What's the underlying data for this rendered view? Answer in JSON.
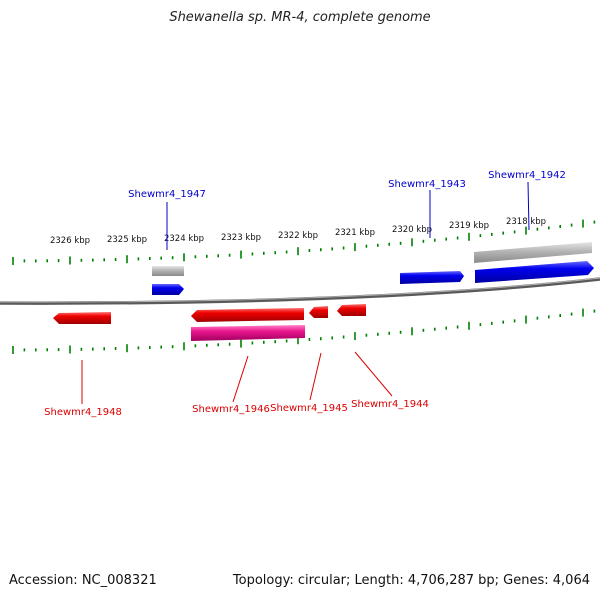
{
  "title": "Shewanella sp. MR-4, complete genome",
  "footer": {
    "accession": "Accession: NC_008321",
    "summary": "Topology: circular; Length: 4,706,287 bp; Genes: 4,064"
  },
  "scale": {
    "unit": "kbp",
    "ticks": [
      "2326 kbp",
      "2325 kbp",
      "2324 kbp",
      "2323 kbp",
      "2322 kbp",
      "2321 kbp",
      "2320 kbp",
      "2319 kbp",
      "2318 kbp"
    ]
  },
  "genes": {
    "plus": [
      {
        "id": "g1947",
        "label": "Shewmr4_1947",
        "color": "#0000ee"
      },
      {
        "id": "g1943",
        "label": "Shewmr4_1943",
        "color": "#0000ee"
      },
      {
        "id": "g1942",
        "label": "Shewmr4_1942",
        "color": "#0000ee"
      }
    ],
    "minus": [
      {
        "id": "g1948",
        "label": "Shewmr4_1948",
        "color": "#ee0000"
      },
      {
        "id": "g1946",
        "label": "Shewmr4_1946",
        "color": "#ee0000"
      },
      {
        "id": "g1945",
        "label": "Shewmr4_1945",
        "color": "#ee0000"
      },
      {
        "id": "g1944",
        "label": "Shewmr4_1944",
        "color": "#ee0000"
      }
    ]
  },
  "colors": {
    "plus_gene": "#0000ee",
    "minus_gene": "#ee0000",
    "rna_feature": "#ee1493",
    "pseudo_feature": "#aaaaaa",
    "backbone": "#808080",
    "tick": "#008000"
  }
}
